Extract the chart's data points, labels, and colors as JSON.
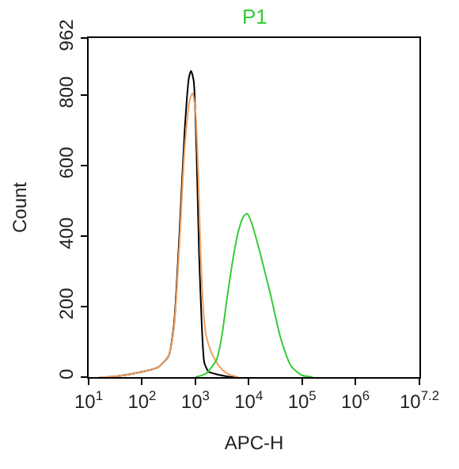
{
  "chart_data": {
    "type": "line",
    "xlabel": "APC-H",
    "ylabel": "Count",
    "log": "x",
    "legend": false,
    "marker": "none",
    "line_style": "solid",
    "xlim": [
      10,
      15848932
    ],
    "ylim": [
      0,
      962
    ],
    "xticks": [
      {
        "value": 10,
        "label": "10$^{1}$"
      },
      {
        "value": 100,
        "label": "10$^{2}$"
      },
      {
        "value": 1000,
        "label": "10$^{3}$"
      },
      {
        "value": 10000,
        "label": "10$^{4}$"
      },
      {
        "value": 100000,
        "label": "10$^{5}$"
      },
      {
        "value": 1000000,
        "label": "10$^{6}$"
      },
      {
        "value": 15848932,
        "label": "10$^{7.2}$"
      }
    ],
    "yticks": [
      0,
      200,
      400,
      600,
      800,
      962
    ],
    "series": [
      {
        "color": "#000000",
        "x": [
          16,
          32,
          100,
          200,
          316,
          398,
          501,
          631,
          759,
          832,
          933,
          1047,
          1175,
          1318,
          1479,
          1778,
          2512,
          3981,
          6310
        ],
        "values": [
          0,
          2,
          15,
          28,
          60,
          150,
          400,
          700,
          850,
          869,
          840,
          650,
          350,
          150,
          40,
          15,
          8,
          2,
          0
        ]
      },
      {
        "color": "#f0a060",
        "x": [
          16,
          32,
          100,
          200,
          316,
          398,
          501,
          631,
          794,
          891,
          1000,
          1122,
          1259,
          1413,
          1585,
          1995,
          2818,
          3981,
          6310
        ],
        "values": [
          0,
          2,
          15,
          28,
          60,
          140,
          370,
          650,
          790,
          806,
          760,
          600,
          350,
          190,
          120,
          70,
          30,
          10,
          0
        ]
      },
      {
        "name": "P1",
        "color": "#33cc33",
        "x": [
          1000,
          1585,
          2512,
          3162,
          3981,
          5012,
          6310,
          7943,
          9333,
          11220,
          15849,
          25119,
          39811,
          63096,
          100000,
          158489
        ],
        "values": [
          0,
          10,
          50,
          120,
          230,
          330,
          410,
          455,
          464,
          440,
          360,
          240,
          110,
          30,
          5,
          0
        ]
      }
    ]
  }
}
